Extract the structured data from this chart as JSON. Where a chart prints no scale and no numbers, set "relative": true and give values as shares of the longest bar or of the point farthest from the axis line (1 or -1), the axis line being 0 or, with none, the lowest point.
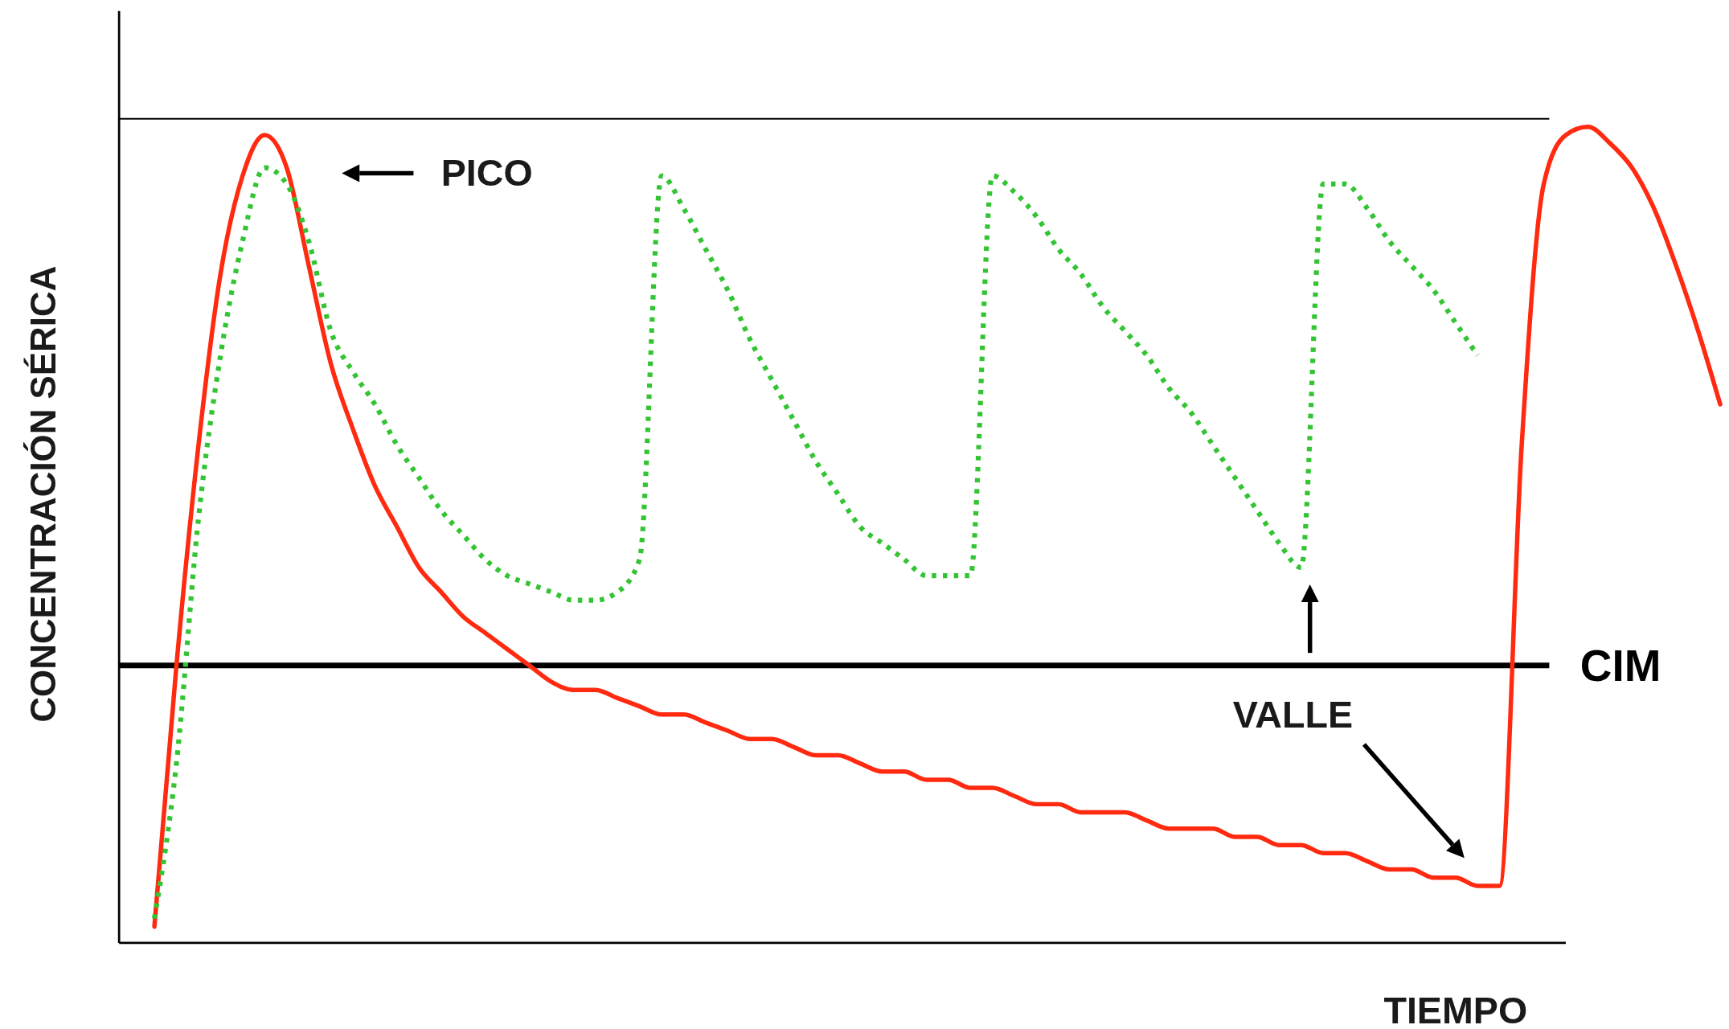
{
  "chart_data": {
    "type": "line",
    "relative": true,
    "xlabel": "TIEMPO",
    "ylabel": "CONCENTRACIÓN SÉRICA",
    "categories": [
      null,
      null,
      null,
      null,
      null,
      null,
      null,
      null,
      null,
      null,
      null,
      null,
      null,
      null,
      null,
      null,
      null,
      null,
      null,
      null,
      null,
      null,
      null,
      null,
      null,
      null,
      null,
      null,
      null,
      null,
      null,
      null,
      null,
      null,
      null,
      null,
      null,
      null,
      null,
      null,
      null,
      null,
      null,
      null,
      null,
      null,
      null,
      null,
      null,
      null,
      null,
      null,
      null,
      null,
      null,
      null,
      null,
      null,
      null,
      null,
      null,
      null,
      null,
      null,
      null,
      null,
      null,
      null,
      null,
      null,
      null,
      null
    ],
    "series": [
      {
        "color": "#ff2a10",
        "line_style": "solid",
        "values": [
          0.02,
          0.34,
          0.61,
          0.82,
          0.94,
          0.99,
          0.95,
          0.83,
          0.71,
          0.63,
          0.56,
          0.51,
          0.46,
          0.43,
          0.4,
          0.38,
          0.36,
          0.34,
          0.32,
          0.31,
          0.31,
          0.3,
          0.29,
          0.28,
          0.28,
          0.27,
          0.26,
          0.25,
          0.25,
          0.24,
          0.23,
          0.23,
          0.22,
          0.21,
          0.21,
          0.2,
          0.2,
          0.19,
          0.19,
          0.18,
          0.17,
          0.17,
          0.16,
          0.16,
          0.16,
          0.15,
          0.14,
          0.14,
          0.14,
          0.13,
          0.13,
          0.12,
          0.12,
          0.11,
          0.11,
          0.1,
          0.09,
          0.09,
          0.08,
          0.08,
          0.07,
          0.07,
          0.61,
          0.93,
          0.99,
          1,
          0.98,
          0.95,
          0.9,
          0.83,
          0.75,
          0.66
        ]
      },
      {
        "color": "#33c433",
        "line_style": "dotted",
        "values": [
          0.03,
          0.22,
          0.52,
          0.72,
          0.86,
          0.95,
          0.93,
          0.86,
          0.75,
          0.7,
          0.66,
          0.61,
          0.57,
          0.53,
          0.5,
          0.47,
          0.45,
          0.44,
          0.43,
          0.42,
          0.42,
          0.43,
          0.47,
          0.94,
          0.9,
          0.85,
          0.8,
          0.74,
          0.69,
          0.64,
          0.59,
          0.55,
          0.51,
          0.49,
          0.47,
          0.45,
          0.45,
          0.45,
          0.94,
          0.92,
          0.89,
          0.85,
          0.82,
          0.78,
          0.75,
          0.72,
          0.68,
          0.65,
          0.61,
          0.57,
          0.53,
          0.49,
          0.46,
          0.93,
          0.93,
          0.9,
          0.86,
          0.83,
          0.8,
          0.76,
          0.72,
          null,
          null,
          null,
          null,
          null,
          null,
          null,
          null,
          null,
          null,
          null
        ]
      }
    ],
    "ref_lines": [
      {
        "axis": "y",
        "value": 1.01,
        "color": "#000000"
      },
      {
        "axis": "y",
        "value": 0.34,
        "label": "CIM",
        "color": "#000000"
      }
    ],
    "annotations": [
      "PICO",
      "VALLE"
    ]
  }
}
